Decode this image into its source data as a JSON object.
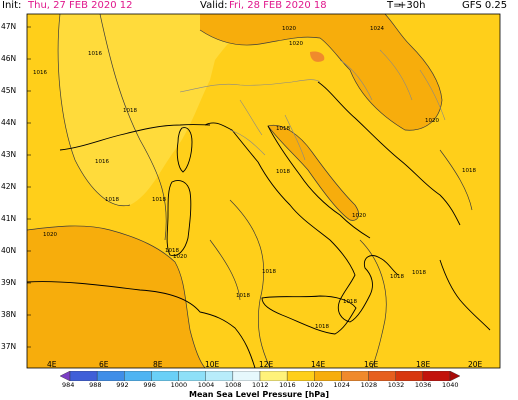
{
  "header": {
    "init_key": "Init:",
    "init_val": "Thu, 27 FEB 2020  12",
    "valid_key": "Valid:",
    "valid_val": "Fri, 28 FEB 2020  18",
    "lead_key": "T=",
    "lead_val": "+30h",
    "model": "GFS 0.25"
  },
  "lat_labels": [
    "47N",
    "46N",
    "45N",
    "44N",
    "43N",
    "42N",
    "41N",
    "40N",
    "39N",
    "38N",
    "37N"
  ],
  "lon_labels": [
    "4E",
    "6E",
    "8E",
    "10E",
    "12E",
    "14E",
    "16E",
    "18E",
    "20E"
  ],
  "isobar_labels": [
    "1016",
    "1016",
    "1016",
    "1018",
    "1018",
    "1018",
    "1018",
    "1020",
    "1020",
    "1018",
    "1018",
    "1018",
    "1018",
    "1020",
    "1020",
    "1024",
    "1020",
    "1020",
    "1018",
    "1018",
    "1018",
    "1018",
    "1018"
  ],
  "colorbar": {
    "levels": [
      "984",
      "988",
      "992",
      "996",
      "1000",
      "1004",
      "1008",
      "1012",
      "1016",
      "1020",
      "1024",
      "1028",
      "1032",
      "1036",
      "1040"
    ],
    "colors": [
      "#7b3fc4",
      "#3f5fd8",
      "#3f8ee8",
      "#4fb4f2",
      "#6ad0f7",
      "#8ee0f8",
      "#b8ecfa",
      "#e6f8fc",
      "#fff27a",
      "#ffcf1a",
      "#f7ad0c",
      "#f08a2c",
      "#e6601f",
      "#d8380f",
      "#c2130c",
      "#a80a08"
    ],
    "title": "Mean Sea Level Pressure [hPa]"
  }
}
